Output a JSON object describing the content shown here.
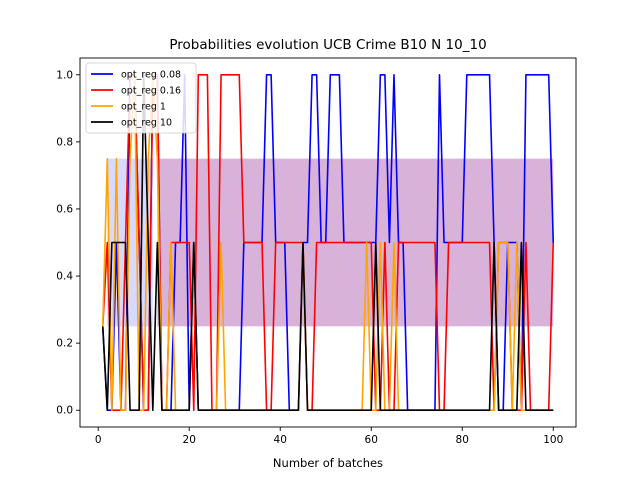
{
  "chart_data": {
    "type": "line",
    "title": "Probabilities evolution UCB Crime B10 N 10_10",
    "xlabel": "Number of batches",
    "ylabel": "",
    "xlim": [
      -4,
      105
    ],
    "ylim": [
      -0.05,
      1.05
    ],
    "xticks": [
      0,
      20,
      40,
      60,
      80,
      100
    ],
    "yticks": [
      0.0,
      0.2,
      0.4,
      0.6,
      0.8,
      1.0
    ],
    "grid": false,
    "legend_position": "top-left",
    "bands": [
      {
        "name": "",
        "color": "#800080",
        "opacity": 0.3,
        "lower": 0.25,
        "upper": 0.75,
        "x_start": 13,
        "x_end": 100
      },
      {
        "name": "",
        "color": "#0000ff",
        "opacity": 0.15,
        "lower": 0.25,
        "upper": 0.75,
        "x_start": 2,
        "x_end": 12
      }
    ],
    "series": [
      {
        "name": "opt_reg 0.08",
        "color": "#0000ff",
        "points": [
          [
            1,
            0.25
          ],
          [
            2,
            0
          ],
          [
            3,
            0
          ],
          [
            4,
            0.5
          ],
          [
            5,
            0
          ],
          [
            6,
            0
          ],
          [
            7,
            1
          ],
          [
            8,
            1
          ],
          [
            9,
            0.5
          ],
          [
            10,
            0
          ],
          [
            11,
            0
          ],
          [
            12,
            1
          ],
          [
            13,
            1
          ],
          [
            14,
            0
          ],
          [
            15,
            0
          ],
          [
            16,
            0
          ],
          [
            17,
            0.5
          ],
          [
            18,
            0.5
          ],
          [
            19,
            1
          ],
          [
            20,
            0
          ],
          [
            21,
            0.5
          ],
          [
            22,
            0
          ],
          [
            23,
            0
          ],
          [
            30,
            0
          ],
          [
            31,
            0
          ],
          [
            32,
            0.5
          ],
          [
            36,
            0.5
          ],
          [
            37,
            1
          ],
          [
            38,
            1
          ],
          [
            39,
            0.5
          ],
          [
            40,
            0.5
          ],
          [
            41,
            0.5
          ],
          [
            42,
            0
          ],
          [
            44,
            0
          ],
          [
            45,
            0.5
          ],
          [
            46,
            0.5
          ],
          [
            47,
            1
          ],
          [
            48,
            1
          ],
          [
            49,
            0.5
          ],
          [
            50,
            0.5
          ],
          [
            51,
            1
          ],
          [
            52,
            1
          ],
          [
            53,
            1
          ],
          [
            54,
            0.5
          ],
          [
            59,
            0.5
          ],
          [
            60,
            0.5
          ],
          [
            61,
            0.5
          ],
          [
            62,
            1
          ],
          [
            63,
            1
          ],
          [
            64,
            0.5
          ],
          [
            65,
            1
          ],
          [
            66,
            0.5
          ],
          [
            67,
            0.5
          ],
          [
            68,
            0
          ],
          [
            74,
            0
          ],
          [
            75,
            1
          ],
          [
            76,
            0.5
          ],
          [
            80,
            0.5
          ],
          [
            81,
            1
          ],
          [
            85,
            1
          ],
          [
            86,
            1
          ],
          [
            87,
            0.5
          ],
          [
            88,
            0
          ],
          [
            89,
            0
          ],
          [
            90,
            0.5
          ],
          [
            91,
            0.5
          ],
          [
            92,
            0.5
          ],
          [
            93,
            0
          ],
          [
            94,
            1
          ],
          [
            98,
            1
          ],
          [
            99,
            1
          ],
          [
            100,
            0.5
          ]
        ]
      },
      {
        "name": "opt_reg 0.16",
        "color": "#ff0000",
        "points": [
          [
            1,
            0.25
          ],
          [
            2,
            0.5
          ],
          [
            3,
            0
          ],
          [
            4,
            0
          ],
          [
            5,
            0
          ],
          [
            6,
            0.5
          ],
          [
            7,
            1
          ],
          [
            8,
            1
          ],
          [
            9,
            0.5
          ],
          [
            10,
            0
          ],
          [
            11,
            0
          ],
          [
            12,
            1
          ],
          [
            13,
            1
          ],
          [
            14,
            0
          ],
          [
            15,
            0
          ],
          [
            16,
            0.5
          ],
          [
            17,
            0.5
          ],
          [
            18,
            0.5
          ],
          [
            19,
            0.5
          ],
          [
            20,
            0.5
          ],
          [
            21,
            0
          ],
          [
            22,
            1
          ],
          [
            23,
            1
          ],
          [
            24,
            1
          ],
          [
            25,
            0
          ],
          [
            26,
            0
          ],
          [
            27,
            1
          ],
          [
            28,
            1
          ],
          [
            29,
            1
          ],
          [
            30,
            1
          ],
          [
            31,
            1
          ],
          [
            32,
            0.5
          ],
          [
            36,
            0.5
          ],
          [
            37,
            0
          ],
          [
            38,
            0
          ],
          [
            39,
            0.5
          ],
          [
            40,
            0.5
          ],
          [
            41,
            0.5
          ],
          [
            44,
            0.5
          ],
          [
            45,
            0.5
          ],
          [
            46,
            0
          ],
          [
            47,
            0
          ],
          [
            48,
            0.5
          ],
          [
            60,
            0.5
          ],
          [
            61,
            0
          ],
          [
            62,
            0
          ],
          [
            63,
            0.5
          ],
          [
            64,
            0
          ],
          [
            65,
            0
          ],
          [
            66,
            0.5
          ],
          [
            74,
            0.5
          ],
          [
            75,
            0
          ],
          [
            76,
            0
          ],
          [
            77,
            0.5
          ],
          [
            80,
            0.5
          ],
          [
            81,
            0.5
          ],
          [
            82,
            0.5
          ],
          [
            86,
            0.5
          ],
          [
            87,
            0
          ],
          [
            88,
            0.5
          ],
          [
            89,
            0.5
          ],
          [
            90,
            0.5
          ],
          [
            91,
            0
          ],
          [
            92,
            0
          ],
          [
            93,
            0
          ],
          [
            94,
            0.5
          ],
          [
            95,
            0
          ],
          [
            96,
            0
          ],
          [
            99,
            0
          ],
          [
            100,
            0.5
          ]
        ]
      },
      {
        "name": "opt_reg 1",
        "color": "#ffa500",
        "points": [
          [
            1,
            0.25
          ],
          [
            2,
            0.75
          ],
          [
            3,
            0
          ],
          [
            4,
            0.75
          ],
          [
            5,
            0
          ],
          [
            6,
            0
          ],
          [
            7,
            0.75
          ],
          [
            8,
            1
          ],
          [
            9,
            0
          ],
          [
            10,
            0
          ],
          [
            11,
            0.75
          ],
          [
            12,
            1
          ],
          [
            13,
            0.75
          ],
          [
            14,
            0
          ],
          [
            15,
            0
          ],
          [
            16,
            0.5
          ],
          [
            17,
            0
          ],
          [
            20,
            0
          ],
          [
            21,
            0.5
          ],
          [
            22,
            0
          ],
          [
            26,
            0
          ],
          [
            27,
            0.5
          ],
          [
            28,
            0
          ],
          [
            44,
            0
          ],
          [
            45,
            0.5
          ],
          [
            46,
            0
          ],
          [
            58,
            0
          ],
          [
            59,
            0.5
          ],
          [
            60,
            0
          ],
          [
            61,
            0
          ],
          [
            62,
            0.5
          ],
          [
            63,
            0
          ],
          [
            64,
            0
          ],
          [
            65,
            0.5
          ],
          [
            66,
            0
          ],
          [
            87,
            0
          ],
          [
            88,
            0.5
          ],
          [
            89,
            0.5
          ],
          [
            90,
            0.5
          ],
          [
            91,
            0
          ],
          [
            92,
            0.5
          ],
          [
            93,
            0
          ],
          [
            100,
            0
          ]
        ]
      },
      {
        "name": "opt_reg 10",
        "color": "#000000",
        "points": [
          [
            1,
            0.25
          ],
          [
            2,
            0
          ],
          [
            3,
            0.5
          ],
          [
            4,
            0.5
          ],
          [
            5,
            0.5
          ],
          [
            6,
            0.5
          ],
          [
            7,
            0
          ],
          [
            8,
            0
          ],
          [
            9,
            0
          ],
          [
            10,
            1
          ],
          [
            11,
            0.5
          ],
          [
            12,
            0
          ],
          [
            13,
            0.5
          ],
          [
            14,
            0
          ],
          [
            20,
            0
          ],
          [
            21,
            0.5
          ],
          [
            22,
            0
          ],
          [
            44,
            0
          ],
          [
            45,
            0.5
          ],
          [
            46,
            0
          ],
          [
            60,
            0
          ],
          [
            61,
            0.5
          ],
          [
            62,
            0
          ],
          [
            86,
            0
          ],
          [
            87,
            0.5
          ],
          [
            88,
            0
          ],
          [
            89,
            0
          ],
          [
            92,
            0
          ],
          [
            93,
            0.5
          ],
          [
            94,
            0
          ],
          [
            100,
            0
          ]
        ]
      }
    ]
  }
}
